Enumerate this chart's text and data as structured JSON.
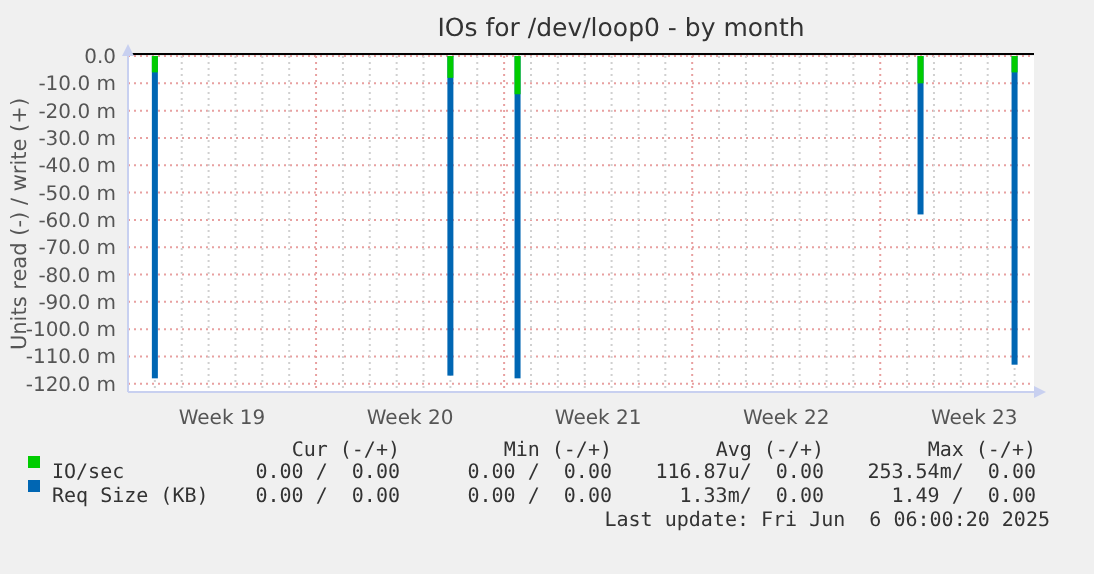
{
  "chart_data": {
    "title": "IOs for /dev/loop0 - by month",
    "ylabel": "Units read (-) / write (+)",
    "categories": [
      null,
      null,
      null,
      null,
      null,
      null,
      null,
      "Week 19",
      null,
      null,
      null,
      null,
      null,
      null,
      null,
      null,
      null,
      null,
      null,
      null,
      null,
      "Week 20",
      null,
      null,
      null,
      null,
      null,
      null,
      null,
      null,
      null,
      null,
      null,
      null,
      null,
      "Week 21",
      null,
      null,
      null,
      null,
      null,
      null,
      null,
      null,
      null,
      null,
      null,
      null,
      null,
      "Week 22",
      null,
      null,
      null,
      null,
      null,
      null,
      null,
      null,
      null,
      null,
      null,
      null,
      null,
      "Week 23",
      null,
      null,
      null,
      null
    ],
    "type": "bar",
    "ylim": [
      -123,
      0
    ],
    "yticks": [
      {
        "value": 0,
        "label": "0.0"
      },
      {
        "value": -10,
        "label": "-10.0 m"
      },
      {
        "value": -20,
        "label": "-20.0 m"
      },
      {
        "value": -30,
        "label": "-30.0 m"
      },
      {
        "value": -40,
        "label": "-40.0 m"
      },
      {
        "value": -50,
        "label": "-50.0 m"
      },
      {
        "value": -60,
        "label": "-60.0 m"
      },
      {
        "value": -70,
        "label": "-70.0 m"
      },
      {
        "value": -80,
        "label": "-80.0 m"
      },
      {
        "value": -90,
        "label": "-90.0 m"
      },
      {
        "value": -100,
        "label": "-100.0 m"
      },
      {
        "value": -110,
        "label": "-110.0 m"
      },
      {
        "value": -120,
        "label": "-120.0 m"
      }
    ],
    "grid": true,
    "legend": "bottom",
    "ref_lines": [
      {
        "axis": "y",
        "value": 0,
        "color": "#000000"
      }
    ],
    "series": [
      {
        "name": "IO/sec",
        "color": "#00cc00",
        "values": [
          null,
          null,
          -6,
          null,
          null,
          null,
          null,
          null,
          null,
          null,
          null,
          null,
          null,
          null,
          null,
          null,
          null,
          null,
          null,
          null,
          null,
          null,
          null,
          null,
          -8,
          null,
          null,
          null,
          null,
          -14,
          null,
          null,
          null,
          null,
          null,
          null,
          null,
          null,
          null,
          null,
          null,
          null,
          null,
          null,
          null,
          null,
          null,
          null,
          null,
          null,
          null,
          null,
          null,
          null,
          null,
          null,
          null,
          null,
          null,
          -10,
          null,
          null,
          null,
          null,
          null,
          null,
          -6,
          null
        ]
      },
      {
        "name": "Req Size (KB)",
        "color": "#0066b3",
        "values": [
          null,
          null,
          -118,
          null,
          null,
          null,
          null,
          null,
          null,
          null,
          null,
          null,
          null,
          null,
          null,
          null,
          null,
          null,
          null,
          null,
          null,
          null,
          null,
          null,
          -117,
          null,
          null,
          null,
          null,
          -118,
          null,
          null,
          null,
          null,
          null,
          null,
          null,
          null,
          null,
          null,
          null,
          null,
          null,
          null,
          null,
          null,
          null,
          null,
          null,
          null,
          null,
          null,
          null,
          null,
          null,
          null,
          null,
          null,
          null,
          -58,
          null,
          null,
          null,
          null,
          null,
          null,
          -113,
          null
        ]
      }
    ],
    "annotations": [
      "Cur (-/+)",
      "Min (-/+)",
      "Avg (-/+)",
      "Max (-/+)",
      "0.00 /  0.00",
      "0.00 /  0.00",
      "116.87u/  0.00",
      "253.54m/  0.00",
      "0.00 /  0.00",
      "0.00 /  0.00",
      "1.33m/  0.00",
      "1.49 /  0.00",
      "Last update: Fri Jun  6 06:00:20 2025"
    ]
  }
}
